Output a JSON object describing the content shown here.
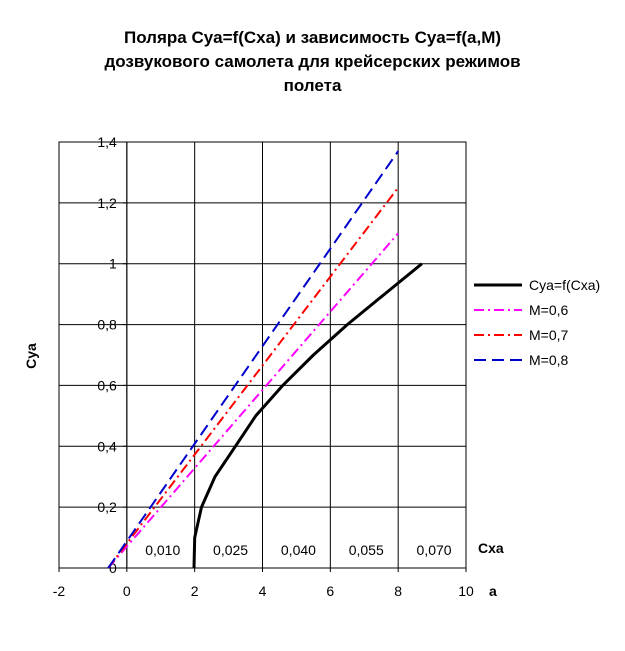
{
  "title_lines": [
    "Поляра Cya=f(Cxa) и зависимость Cya=f(a,M)",
    "дозвукового самолета для крейсерских режимов",
    "полета"
  ],
  "chart_data": {
    "type": "line",
    "xlabel": "a",
    "ylabel": "Cya",
    "secondary_xlabel": "Cxa",
    "xlim": [
      -2,
      10
    ],
    "ylim": [
      0,
      1.4
    ],
    "grid": true,
    "legend_position": "right",
    "x_tick_labels": [
      "-2",
      "0",
      "2",
      "4",
      "6",
      "8",
      "10"
    ],
    "x_tick_values": [
      -2,
      0,
      2,
      4,
      6,
      8,
      10
    ],
    "y_tick_labels": [
      "0",
      "0,2",
      "0,4",
      "0,6",
      "0,8",
      "1",
      "1,2",
      "1,4"
    ],
    "y_tick_values": [
      0,
      0.2,
      0.4,
      0.6,
      0.8,
      1.0,
      1.2,
      1.4
    ],
    "cxa_tick_labels": [
      "0,010",
      "0,025",
      "0,040",
      "0,055",
      "0,070"
    ],
    "cxa_tick_positions": [
      1,
      3,
      5,
      7,
      9
    ],
    "series": [
      {
        "name": "Cya=f(Cxa)",
        "color": "#000000",
        "style": "solid",
        "x": [
          1.98,
          2.0,
          2.2,
          2.6,
          3.2,
          3.8,
          4.6,
          5.5,
          6.5,
          7.6,
          8.7
        ],
        "y": [
          0.0,
          0.1,
          0.2,
          0.3,
          0.4,
          0.5,
          0.6,
          0.7,
          0.8,
          0.9,
          1.0
        ]
      },
      {
        "name": "M=0,6",
        "color": "#ff00ff",
        "style": "dashdot",
        "x": [
          -0.55,
          8.0
        ],
        "y": [
          0.0,
          1.1
        ]
      },
      {
        "name": "M=0,7",
        "color": "#ff0000",
        "style": "dashdot",
        "x": [
          -0.55,
          8.0
        ],
        "y": [
          0.0,
          1.25
        ]
      },
      {
        "name": "M=0,8",
        "color": "#0000cc",
        "style": "dash",
        "x": [
          -0.55,
          8.0
        ],
        "y": [
          0.0,
          1.37
        ]
      }
    ]
  }
}
